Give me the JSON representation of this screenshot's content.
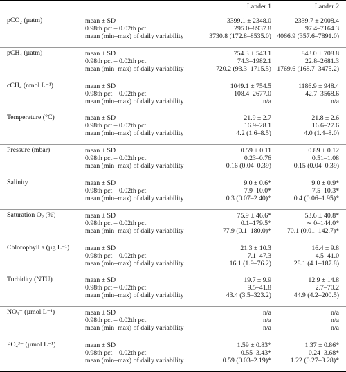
{
  "header": {
    "col1": "Lander 1",
    "col2": "Lander 2"
  },
  "groups": [
    {
      "name": "pCO₂ (µatm)",
      "rows": [
        {
          "stat": "mean ± SD",
          "l1": "3399.1 ± 2348.0",
          "l2": "2339.7 ± 2008.4"
        },
        {
          "stat": "0.98th pct – 0.02th pct",
          "l1": "295.0–8937.8",
          "l2": "97.4–7164.3"
        },
        {
          "stat": "mean (min–max) of daily variability",
          "l1": "3730.8 (172.8–8535.0)",
          "l2": "4066.9 (357.6–7891.0)"
        }
      ]
    },
    {
      "name": "pCH₄ (µatm)",
      "rows": [
        {
          "stat": "mean ± SD",
          "l1": "754.3 ± 543.1",
          "l2": "843.0 ± 708.8"
        },
        {
          "stat": "0.98th pct – 0.02th pct",
          "l1": "74.3–1982.1",
          "l2": "22.8–2681.3"
        },
        {
          "stat": "mean (min–max) of daily variability",
          "l1": "720.2 (93.3–1715.5)",
          "l2": "1769.6 (168.7–3475.2)"
        }
      ]
    },
    {
      "name": "cCH₄ (nmol L⁻¹)",
      "rows": [
        {
          "stat": "mean ± SD",
          "l1": "1049.1 ± 754.5",
          "l2": "1186.9 ± 948.4"
        },
        {
          "stat": "0.98th pct – 0.02th pct",
          "l1": "108.4–2677.0",
          "l2": "42.7–3568.6"
        },
        {
          "stat": "mean (min–max) of daily variability",
          "l1": "n/a",
          "l2": "n/a"
        }
      ]
    },
    {
      "name": "Temperature (°C)",
      "rows": [
        {
          "stat": "mean ± SD",
          "l1": "21.9 ± 2.7",
          "l2": "21.8 ± 2.6"
        },
        {
          "stat": "0.98th pct – 0.02th pct",
          "l1": "16.9–28.1",
          "l2": "16.6–27.6"
        },
        {
          "stat": "mean (min–max) of daily variability",
          "l1": "4.2 (1.6–8.5)",
          "l2": "4.0 (1.4–8.0)"
        }
      ]
    },
    {
      "name": "Pressure (mbar)",
      "rows": [
        {
          "stat": "mean ± SD",
          "l1": "0.59 ± 0.11",
          "l2": "0.89 ± 0.12"
        },
        {
          "stat": "0.98th pct – 0.02th pct",
          "l1": "0.23–0.76",
          "l2": "0.51–1.08"
        },
        {
          "stat": "mean (min–max) of daily variability",
          "l1": "0.16 (0.04–0.39)",
          "l2": "0.15 (0.04–0.39)"
        }
      ]
    },
    {
      "name": "Salinity",
      "rows": [
        {
          "stat": "mean ± SD",
          "l1": "9.0 ± 0.6*",
          "l2": "9.0 ± 0.9*"
        },
        {
          "stat": "0.98th pct – 0.02th pct",
          "l1": "7.9–10.0*",
          "l2": "7.5–10.3*"
        },
        {
          "stat": "mean (min–max) of daily variability",
          "l1": "0.3 (0.07–2.40)*",
          "l2": "0.4 (0.06–1.95)*"
        }
      ]
    },
    {
      "name": "Saturation O₂ (%)",
      "rows": [
        {
          "stat": "mean ± SD",
          "l1": "75.9 ± 46.6*",
          "l2": "53.6 ± 40.8*"
        },
        {
          "stat": "0.98th pct – 0.02th pct",
          "l1": "0.1–179.5*",
          "l2": "∼ 0–144.0*"
        },
        {
          "stat": "mean (min–max) of daily variability",
          "l1": "77.9 (0.1–180.0)*",
          "l2": "70.1 (0.01–142.7)*"
        }
      ]
    },
    {
      "name": "Chlorophyll a (µg L⁻¹)",
      "rows": [
        {
          "stat": "mean ± SD",
          "l1": "21.3 ± 10.3",
          "l2": "16.4 ± 9.8"
        },
        {
          "stat": "0.98th pct – 0.02th pct",
          "l1": "7.1–47.3",
          "l2": "4.5–41.0"
        },
        {
          "stat": "mean (min–max) of daily variability",
          "l1": "16.1 (1.9–76.2)",
          "l2": "28.1 (4.1–187.8)"
        }
      ]
    },
    {
      "name": "Turbidity (NTU)",
      "rows": [
        {
          "stat": "mean ± SD",
          "l1": "19.7 ± 9.9",
          "l2": "12.9 ± 14.8"
        },
        {
          "stat": "0.98th pct – 0.02th pct",
          "l1": "9.5–41.8",
          "l2": "2.7–70.2"
        },
        {
          "stat": "mean (min–max) of daily variability",
          "l1": "43.4 (3.5–323.2)",
          "l2": "44.9 (4.2–200.5)"
        }
      ]
    },
    {
      "name": "NO₃⁻ (µmol L⁻¹)",
      "rows": [
        {
          "stat": "mean ± SD",
          "l1": "n/a",
          "l2": "n/a"
        },
        {
          "stat": "0.98th pct – 0.02th pct",
          "l1": "n/a",
          "l2": "n/a"
        },
        {
          "stat": "mean (min–max) of daily variability",
          "l1": "n/a",
          "l2": "n/a"
        }
      ]
    },
    {
      "name": "PO₄³⁻ (µmol L⁻¹)",
      "rows": [
        {
          "stat": "mean ± SD",
          "l1": "1.59 ± 0.83*",
          "l2": "1.37 ± 0.86*"
        },
        {
          "stat": "0.98th pct – 0.02th pct",
          "l1": "0.55–3.43*",
          "l2": "0.24–3.68*"
        },
        {
          "stat": "mean (min–max) of daily variability",
          "l1": "0.59 (0.03–2.19)*",
          "l2": "1.22 (0.27–3.28)*"
        }
      ]
    }
  ]
}
